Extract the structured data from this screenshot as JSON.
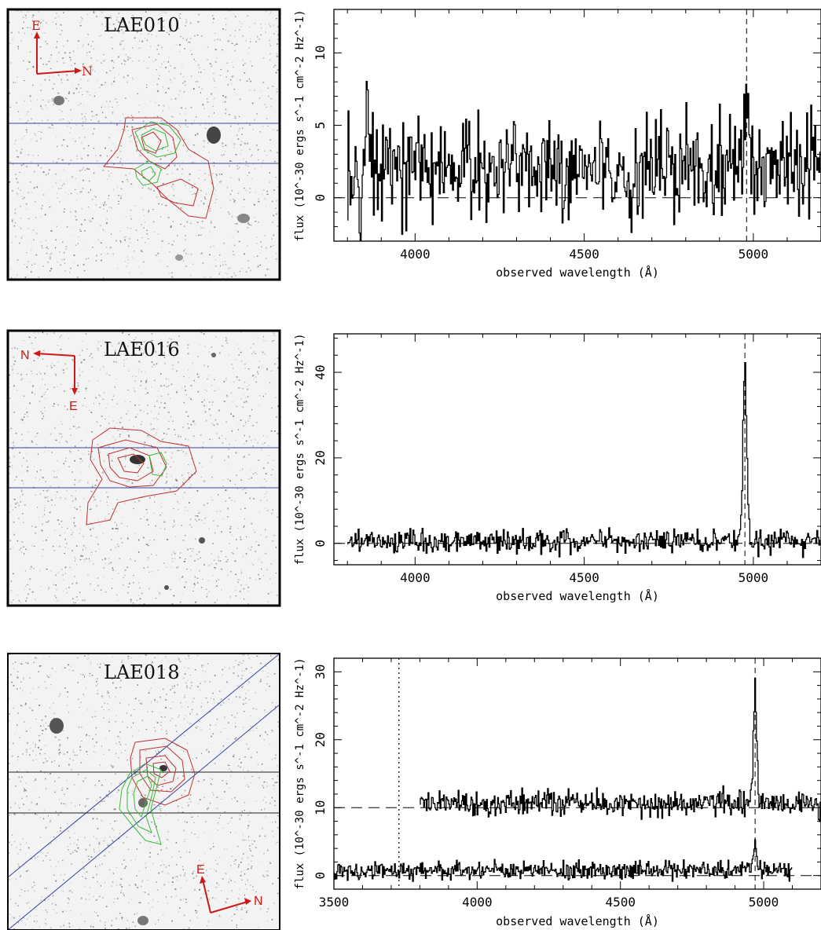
{
  "chart_data": [
    {
      "type": "line",
      "stamp_label": "LAE010",
      "compass": {
        "primary": "E",
        "secondary": "N",
        "orientation": "E-up-N-right"
      },
      "ylabel": "flux (10^-30 ergs s^-1 cm^-2 Hz^-1)",
      "xlabel": "observed wavelength (Å)",
      "xlim": [
        3760,
        5200
      ],
      "ylim": [
        -3,
        13
      ],
      "xticks": [
        4000,
        4500,
        5000
      ],
      "yticks": [
        0,
        5,
        10
      ],
      "zero_line": 0,
      "dashed_line_x": 4980,
      "emission_line": {
        "x": 4980,
        "peak": 7.3
      },
      "noise": {
        "x_start": 3800,
        "x_end": 5200,
        "level": 2.0,
        "scatter": 2.5,
        "blue_scatter_boost": 2.5
      }
    },
    {
      "type": "line",
      "stamp_label": "LAE016",
      "compass": {
        "primary": "N",
        "secondary": "E",
        "orientation": "N-left-E-down"
      },
      "ylabel": "flux (10^-30 ergs s^-1 cm^-2 Hz^-1)",
      "xlabel": "observed wavelength (Å)",
      "xlim": [
        3760,
        5200
      ],
      "ylim": [
        -5,
        49
      ],
      "xticks": [
        4000,
        4500,
        5000
      ],
      "yticks": [
        0,
        20,
        40
      ],
      "zero_line": 0,
      "dashed_line_x": 4975,
      "emission_line": {
        "x": 4975,
        "peak": 41
      },
      "noise": {
        "x_start": 3800,
        "x_end": 5200,
        "level": 0.5,
        "scatter": 2.0,
        "blue_scatter_boost": 0
      }
    },
    {
      "type": "line",
      "stamp_label": "LAE018",
      "compass": {
        "primary": "E",
        "secondary": "N",
        "orientation": "E-up-N-right"
      },
      "ylabel": "flux (10^-30 ergs s^-1 cm^-2 Hz^-1)",
      "xlabel": "observed wavelength (Å)",
      "xlim": [
        3500,
        5200
      ],
      "ylim": [
        -2,
        32
      ],
      "xticks": [
        3500,
        4000,
        4500,
        5000
      ],
      "yticks": [
        0,
        10,
        20,
        30
      ],
      "zero_line": 0,
      "offset_line": 10,
      "dashed_line_x": 4970,
      "dotted_line_x": 3727,
      "series": [
        {
          "x_start": 3800,
          "x_end": 5200,
          "level": 10.6,
          "scatter": 1.4,
          "emission_x": 4970,
          "peak": 28.5
        },
        {
          "x_start": 3500,
          "x_end": 5100,
          "level": 0.8,
          "scatter": 0.9,
          "emission_x": 4970,
          "peak": 5
        }
      ]
    }
  ]
}
